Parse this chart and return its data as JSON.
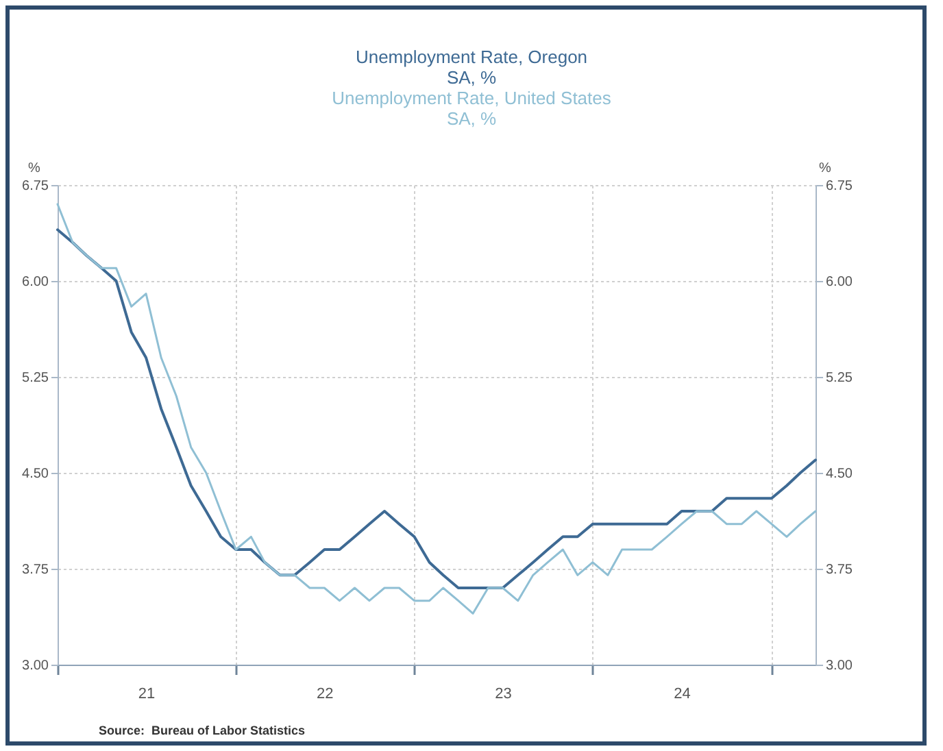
{
  "chart_data": {
    "type": "line",
    "x": [
      "2021-01-01",
      "2021-02-01",
      "2021-03-01",
      "2021-04-01",
      "2021-05-01",
      "2021-06-01",
      "2021-07-01",
      "2021-08-01",
      "2021-09-01",
      "2021-10-01",
      "2021-11-01",
      "2021-12-01",
      "2022-01-01",
      "2022-02-01",
      "2022-03-01",
      "2022-04-01",
      "2022-05-01",
      "2022-06-01",
      "2022-07-01",
      "2022-08-01",
      "2022-09-01",
      "2022-10-01",
      "2022-11-01",
      "2022-12-01",
      "2023-01-01",
      "2023-02-01",
      "2023-03-01",
      "2023-04-01",
      "2023-05-01",
      "2023-06-01",
      "2023-07-01",
      "2023-08-01",
      "2023-09-01",
      "2023-10-01",
      "2023-11-01",
      "2023-12-01",
      "2024-01-01",
      "2024-02-01",
      "2024-03-01",
      "2024-04-01",
      "2024-05-01",
      "2024-06-01",
      "2024-07-01",
      "2024-08-01",
      "2024-09-01",
      "2024-10-01",
      "2024-11-01",
      "2024-12-01",
      "2025-01-01",
      "2025-02-01",
      "2025-03-01",
      "2025-04-01"
    ],
    "series": [
      {
        "name": "Unemployment Rate, Oregon\nSA, %",
        "color": "#3e6a94",
        "values": [
          6.4,
          6.3,
          6.2,
          6.1,
          6.0,
          5.6,
          5.4,
          5.0,
          4.7,
          4.4,
          4.2,
          4.0,
          3.9,
          3.9,
          3.8,
          3.7,
          3.7,
          3.8,
          3.9,
          3.9,
          4.0,
          4.1,
          4.2,
          4.1,
          4.0,
          3.8,
          3.7,
          3.6,
          3.6,
          3.6,
          3.6,
          3.7,
          3.8,
          3.9,
          4.0,
          4.0,
          4.1,
          4.1,
          4.1,
          4.1,
          4.1,
          4.1,
          4.2,
          4.2,
          4.2,
          4.3,
          4.3,
          4.3,
          4.3,
          4.4,
          4.5,
          4.6
        ]
      },
      {
        "name": "Unemployment Rate, United States\nSA, %",
        "color": "#8fbfd4",
        "values": [
          6.6,
          6.3,
          6.2,
          6.1,
          6.1,
          5.8,
          5.9,
          5.4,
          5.1,
          4.7,
          4.5,
          4.2,
          3.9,
          4.0,
          3.8,
          3.7,
          3.7,
          3.6,
          3.6,
          3.5,
          3.6,
          3.5,
          3.6,
          3.6,
          3.5,
          3.5,
          3.6,
          3.5,
          3.4,
          3.6,
          3.6,
          3.5,
          3.7,
          3.8,
          3.9,
          3.7,
          3.8,
          3.7,
          3.9,
          3.9,
          3.9,
          4.0,
          4.1,
          4.2,
          4.2,
          4.1,
          4.1,
          4.2,
          4.1,
          4.0,
          4.1,
          4.2
        ]
      }
    ],
    "ylabel": "%",
    "y2label": "%",
    "ylim": [
      3,
      6.75
    ],
    "yticks": [
      {
        "value": 3,
        "label": "3.00"
      },
      {
        "value": 3.75,
        "label": "3.75"
      },
      {
        "value": 4.5,
        "label": "4.50"
      },
      {
        "value": 5.25,
        "label": "5.25"
      },
      {
        "value": 6,
        "label": "6.00"
      },
      {
        "value": 6.75,
        "label": "6.75"
      }
    ],
    "y2lim": [
      3,
      6.75
    ],
    "y2ticks": [
      {
        "value": 3,
        "label": "3.00"
      },
      {
        "value": 3.75,
        "label": "3.75"
      },
      {
        "value": 4.5,
        "label": "4.50"
      },
      {
        "value": 5.25,
        "label": "5.25"
      },
      {
        "value": 6,
        "label": "6.00"
      },
      {
        "value": 6.75,
        "label": "6.75"
      }
    ],
    "xlim": [
      "2021-01-01",
      "2025-04-01"
    ],
    "xticks": [
      {
        "value": "2021-01-01",
        "label": null
      },
      {
        "value": "2021-07-01",
        "label": "21"
      },
      {
        "value": "2022-01-01",
        "label": null
      },
      {
        "value": "2022-07-01",
        "label": "22"
      },
      {
        "value": "2023-01-01",
        "label": null
      },
      {
        "value": "2023-07-01",
        "label": "23"
      },
      {
        "value": "2024-01-01",
        "label": null
      },
      {
        "value": "2024-07-01",
        "label": "24"
      },
      {
        "value": "2025-01-01",
        "label": null
      }
    ],
    "grid": true,
    "legend": "top",
    "marker": "none",
    "line_style": "solid",
    "annotations": [
      "Source:  Bureau of Labor Statistics"
    ]
  }
}
